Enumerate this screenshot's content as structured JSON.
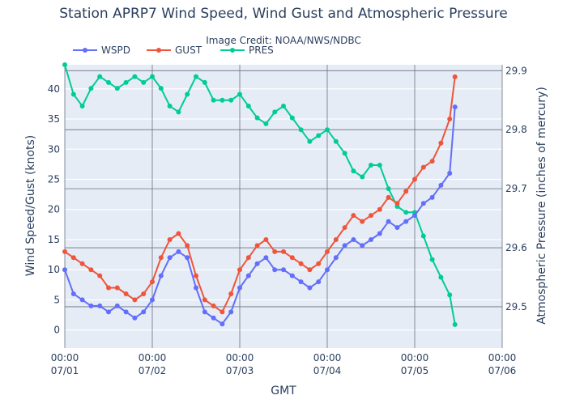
{
  "chart_data": {
    "type": "line",
    "title": "Station APRP7 Wind Speed, Wind Gust and Atmospheric Pressure",
    "subtitle": "Image Credit: NOAA/NWS/NDBC",
    "xlabel": "GMT",
    "ylabel": "Wind Speed/Gust (knots)",
    "y2label": "Atmospheric Pressure (inches of mercury)",
    "xlim": [
      0,
      5
    ],
    "ylim": [
      -3,
      44
    ],
    "y2lim": [
      29.43,
      29.91
    ],
    "grid": true,
    "legend_position": "top-left",
    "x_ticks": [
      {
        "value": 0,
        "time": "00:00",
        "date": "07/01"
      },
      {
        "value": 1,
        "time": "00:00",
        "date": "07/02"
      },
      {
        "value": 2,
        "time": "00:00",
        "date": "07/03"
      },
      {
        "value": 3,
        "time": "00:00",
        "date": "07/04"
      },
      {
        "value": 4,
        "time": "00:00",
        "date": "07/05"
      },
      {
        "value": 5,
        "time": "00:00",
        "date": "07/06"
      }
    ],
    "y_ticks": [
      0,
      5,
      10,
      15,
      20,
      25,
      30,
      35,
      40
    ],
    "y2_ticks": [
      29.5,
      29.6,
      29.7,
      29.8,
      29.9
    ],
    "series": [
      {
        "name": "WSPD",
        "axis": "y1",
        "color": "#636efa",
        "x": [
          0.0,
          0.1,
          0.2,
          0.3,
          0.4,
          0.5,
          0.6,
          0.7,
          0.8,
          0.9,
          1.0,
          1.1,
          1.2,
          1.3,
          1.4,
          1.5,
          1.6,
          1.7,
          1.8,
          1.9,
          2.0,
          2.1,
          2.2,
          2.3,
          2.4,
          2.5,
          2.6,
          2.7,
          2.8,
          2.9,
          3.0,
          3.1,
          3.2,
          3.3,
          3.4,
          3.5,
          3.6,
          3.7,
          3.8,
          3.9,
          4.0,
          4.1,
          4.2,
          4.3,
          4.4,
          4.46
        ],
        "y": [
          10,
          6,
          5,
          4,
          4,
          3,
          4,
          3,
          2,
          3,
          5,
          9,
          12,
          13,
          12,
          7,
          3,
          2,
          1,
          3,
          7,
          9,
          11,
          12,
          10,
          10,
          9,
          8,
          7,
          8,
          10,
          12,
          14,
          15,
          14,
          15,
          16,
          18,
          17,
          18,
          19,
          21,
          22,
          24,
          26,
          37
        ]
      },
      {
        "name": "GUST",
        "axis": "y1",
        "color": "#ef553b",
        "x": [
          0.0,
          0.1,
          0.2,
          0.3,
          0.4,
          0.5,
          0.6,
          0.7,
          0.8,
          0.9,
          1.0,
          1.1,
          1.2,
          1.3,
          1.4,
          1.5,
          1.6,
          1.7,
          1.8,
          1.9,
          2.0,
          2.1,
          2.2,
          2.3,
          2.4,
          2.5,
          2.6,
          2.7,
          2.8,
          2.9,
          3.0,
          3.1,
          3.2,
          3.3,
          3.4,
          3.5,
          3.6,
          3.7,
          3.8,
          3.9,
          4.0,
          4.1,
          4.2,
          4.3,
          4.4,
          4.46
        ],
        "y": [
          13,
          12,
          11,
          10,
          9,
          7,
          7,
          6,
          5,
          6,
          8,
          12,
          15,
          16,
          14,
          9,
          5,
          4,
          3,
          6,
          10,
          12,
          14,
          15,
          13,
          13,
          12,
          11,
          10,
          11,
          13,
          15,
          17,
          19,
          18,
          19,
          20,
          22,
          21,
          23,
          25,
          27,
          28,
          31,
          35,
          42
        ]
      },
      {
        "name": "PRES",
        "axis": "y2",
        "color": "#00cc96",
        "x": [
          0.0,
          0.1,
          0.2,
          0.3,
          0.4,
          0.5,
          0.6,
          0.7,
          0.8,
          0.9,
          1.0,
          1.1,
          1.2,
          1.3,
          1.4,
          1.5,
          1.6,
          1.7,
          1.8,
          1.9,
          2.0,
          2.1,
          2.2,
          2.3,
          2.4,
          2.5,
          2.6,
          2.7,
          2.8,
          2.9,
          3.0,
          3.1,
          3.2,
          3.3,
          3.4,
          3.5,
          3.6,
          3.7,
          3.8,
          3.9,
          4.0,
          4.1,
          4.2,
          4.3,
          4.4,
          4.46
        ],
        "y": [
          29.91,
          29.86,
          29.84,
          29.87,
          29.89,
          29.88,
          29.87,
          29.88,
          29.89,
          29.88,
          29.89,
          29.87,
          29.84,
          29.83,
          29.86,
          29.89,
          29.88,
          29.85,
          29.85,
          29.85,
          29.86,
          29.84,
          29.82,
          29.81,
          29.83,
          29.84,
          29.82,
          29.8,
          29.78,
          29.79,
          29.8,
          29.78,
          29.76,
          29.73,
          29.72,
          29.74,
          29.74,
          29.7,
          29.67,
          29.66,
          29.66,
          29.62,
          29.58,
          29.55,
          29.52,
          29.47
        ]
      }
    ]
  }
}
